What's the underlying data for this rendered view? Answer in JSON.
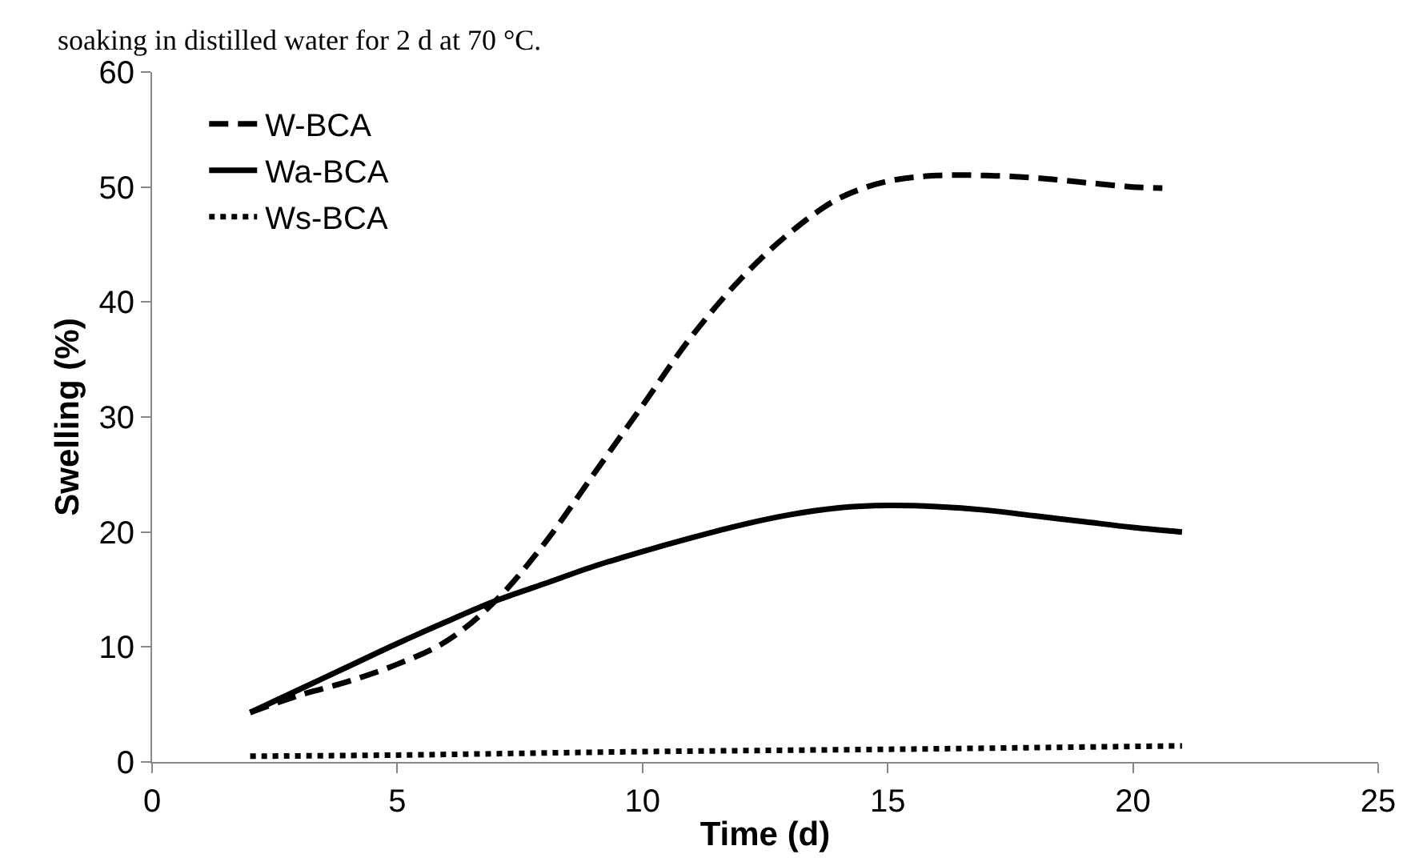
{
  "chart_data": {
    "type": "line",
    "xlabel": "Time (d)",
    "ylabel": "Swelling (%)",
    "annotations": [
      "soaking in distilled water for 2 d at 70 °C."
    ],
    "xlim": [
      0,
      25
    ],
    "xticks": [
      0,
      5,
      10,
      15,
      20,
      25
    ],
    "ylim": [
      0,
      60
    ],
    "yticks": [
      0,
      10,
      20,
      30,
      40,
      50,
      60
    ],
    "legend": "top left",
    "marker": "none",
    "series": [
      {
        "name": "W-BCA",
        "color": "#000000",
        "line_style": "dashed",
        "x": [
          2,
          3,
          4,
          5,
          6,
          7,
          8,
          9,
          10,
          11,
          12,
          13,
          14,
          15,
          16,
          17,
          18,
          19,
          20,
          20.6
        ],
        "values": [
          4.3,
          5.8,
          7.0,
          8.5,
          10.5,
          14,
          19,
          25,
          31,
          37,
          42,
          46,
          49,
          50.5,
          51,
          51,
          50.8,
          50.4,
          50,
          49.9
        ]
      },
      {
        "name": "Wa-BCA",
        "color": "#000000",
        "line_style": "solid",
        "x": [
          2,
          3,
          4,
          5,
          6,
          7,
          8,
          9,
          10,
          11,
          12,
          13,
          14,
          15,
          16,
          17,
          18,
          19,
          20,
          21
        ],
        "values": [
          4.3,
          6.3,
          8.3,
          10.3,
          12.2,
          14,
          15.5,
          17,
          18.3,
          19.5,
          20.6,
          21.5,
          22.1,
          22.3,
          22.2,
          21.9,
          21.4,
          20.9,
          20.4,
          20
        ]
      },
      {
        "name": "Ws-BCA",
        "color": "#000000",
        "line_style": "dotted",
        "x": [
          2,
          5,
          10,
          15,
          21
        ],
        "values": [
          0.5,
          0.6,
          0.9,
          1.1,
          1.4
        ]
      }
    ]
  }
}
